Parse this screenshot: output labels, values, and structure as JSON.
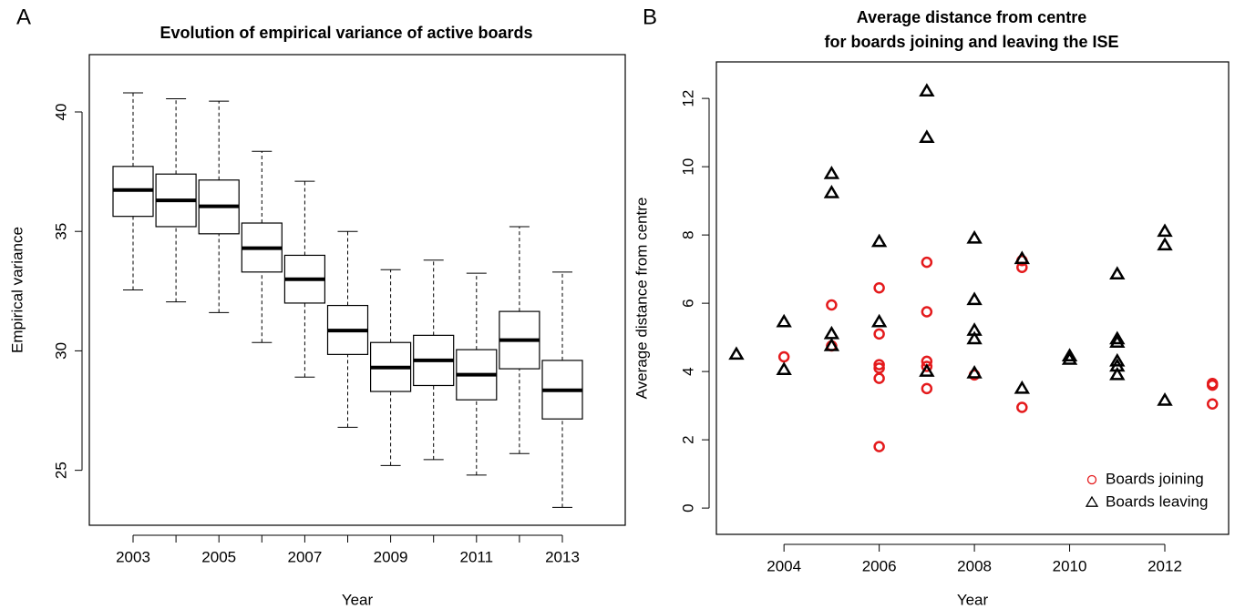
{
  "chart_data": [
    {
      "type": "box",
      "panel_label": "A",
      "title": [
        "Evolution of empirical variance of active boards"
      ],
      "xlabel": "Year",
      "ylabel": "Empirical variance",
      "categories": [
        "2003",
        null,
        "2005",
        null,
        "2007",
        null,
        "2009",
        null,
        "2011",
        null,
        "2013"
      ],
      "values": [
        [
          32.55,
          35.63,
          36.73,
          37.72,
          40.8
        ],
        [
          32.05,
          35.2,
          36.3,
          37.4,
          40.55
        ],
        [
          31.6,
          34.9,
          36.05,
          37.15,
          40.45
        ],
        [
          30.35,
          33.3,
          34.3,
          35.35,
          38.35
        ],
        [
          28.9,
          32.0,
          33.0,
          34.0,
          37.1
        ],
        [
          26.8,
          29.85,
          30.85,
          31.9,
          35.0
        ],
        [
          25.2,
          28.3,
          29.3,
          30.35,
          33.4
        ],
        [
          25.45,
          28.55,
          29.6,
          30.65,
          33.8
        ],
        [
          24.8,
          27.95,
          29.0,
          30.05,
          33.25
        ],
        [
          25.7,
          29.25,
          30.45,
          31.65,
          35.2
        ],
        [
          23.45,
          27.15,
          28.35,
          29.6,
          33.3
        ]
      ],
      "color": "#000000",
      "ylim": [
        22.7,
        42.4
      ],
      "yticks": [
        25,
        30,
        35,
        40
      ]
    },
    {
      "type": "scatter",
      "panel_label": "B",
      "title": [
        "Average distance from centre",
        "for boards joining and leaving the ISE"
      ],
      "xlabel": "Year",
      "ylabel": "Average distance from centre",
      "series": [
        {
          "name": "Boards joining",
          "color": "#e41a1c",
          "marker": "circle",
          "x": [
            2004,
            2005,
            2005,
            2006,
            2006,
            2006,
            2006,
            2006,
            2006,
            2007,
            2007,
            2007,
            2007,
            2007,
            2008,
            2009,
            2009,
            2009,
            2013,
            2013,
            2013
          ],
          "values": [
            4.43,
            5.95,
            4.75,
            6.45,
            5.1,
            4.2,
            4.1,
            3.8,
            1.8,
            7.2,
            5.75,
            4.3,
            4.15,
            3.5,
            3.9,
            7.25,
            7.05,
            2.95,
            3.65,
            3.6,
            3.05
          ]
        },
        {
          "name": "Boards leaving",
          "color": "#000000",
          "marker": "triangle",
          "x": [
            2003,
            2004,
            2004,
            2005,
            2005,
            2005,
            2005,
            2006,
            2006,
            2007,
            2007,
            2007,
            2008,
            2008,
            2008,
            2008,
            2008,
            2009,
            2009,
            2010,
            2010,
            2011,
            2011,
            2011,
            2011,
            2011,
            2011,
            2012,
            2012,
            2012
          ],
          "values": [
            4.5,
            5.45,
            4.05,
            9.79,
            9.23,
            5.1,
            4.75,
            7.8,
            5.45,
            12.21,
            10.85,
            4.0,
            7.9,
            6.1,
            5.2,
            4.95,
            3.95,
            7.3,
            3.5,
            4.45,
            4.35,
            6.85,
            4.95,
            4.85,
            4.3,
            4.15,
            3.9,
            8.1,
            7.7,
            3.15
          ]
        }
      ],
      "xlim": [
        2002.58,
        2013.34
      ],
      "xticks": [
        2004,
        2006,
        2008,
        2010,
        2012
      ],
      "ylim": [
        -0.77,
        13.07
      ],
      "yticks": [
        0,
        2,
        4,
        6,
        8,
        10,
        12
      ],
      "legend": "bottom-right"
    }
  ]
}
